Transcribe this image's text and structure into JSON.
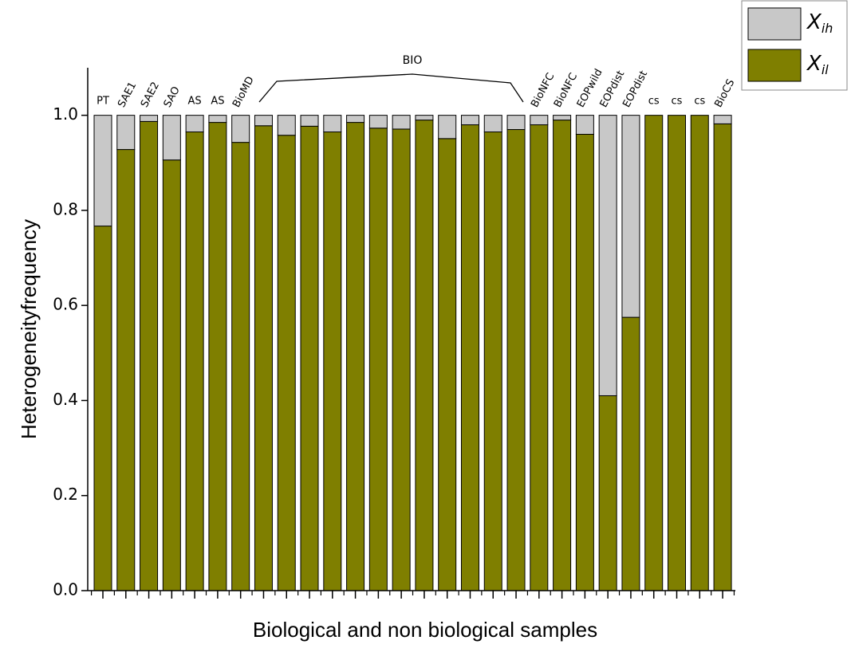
{
  "chart_data": {
    "type": "stacked_bar",
    "xlabel": "Biological and non biological samples",
    "ylabel": "Heterogeneityfrequency",
    "annotations": [
      {
        "text": "BIO"
      }
    ],
    "categories": [
      "PT",
      "SAE1",
      "SAE2",
      "SAO",
      "AS",
      "AS",
      "BioMD",
      null,
      null,
      null,
      null,
      null,
      null,
      null,
      null,
      null,
      null,
      null,
      null,
      "BioNFC",
      "BioNFC",
      "EOPwild",
      "EOPdist",
      "EOPdist",
      "cs",
      "cs",
      "cs",
      "BioCS"
    ],
    "series": [
      {
        "name": "Xil",
        "color": "#7f7f00",
        "values": [
          0.767,
          0.928,
          0.987,
          0.906,
          0.965,
          0.985,
          0.943,
          0.978,
          0.958,
          0.977,
          0.965,
          0.985,
          0.973,
          0.971,
          0.99,
          0.951,
          0.98,
          0.965,
          0.97,
          0.98,
          0.99,
          0.96,
          0.41,
          0.575,
          1.0,
          1.0,
          1.0,
          0.982
        ]
      },
      {
        "name": "Xih",
        "color": "#c8c8c8",
        "values": [
          0.233,
          0.072,
          0.013,
          0.094,
          0.035,
          0.015,
          0.057,
          0.022,
          0.042,
          0.023,
          0.035,
          0.015,
          0.027,
          0.029,
          0.01,
          0.049,
          0.02,
          0.035,
          0.03,
          0.02,
          0.01,
          0.04,
          0.59,
          0.425,
          0,
          0,
          0,
          0.018
        ]
      }
    ],
    "ylim": [
      0,
      1.1
    ],
    "yticks": [
      {
        "value": 0,
        "label": "0.0"
      },
      0.2,
      0.4,
      0.6,
      0.8,
      {
        "value": 1,
        "label": "1.0"
      }
    ],
    "legend": "top-right"
  }
}
